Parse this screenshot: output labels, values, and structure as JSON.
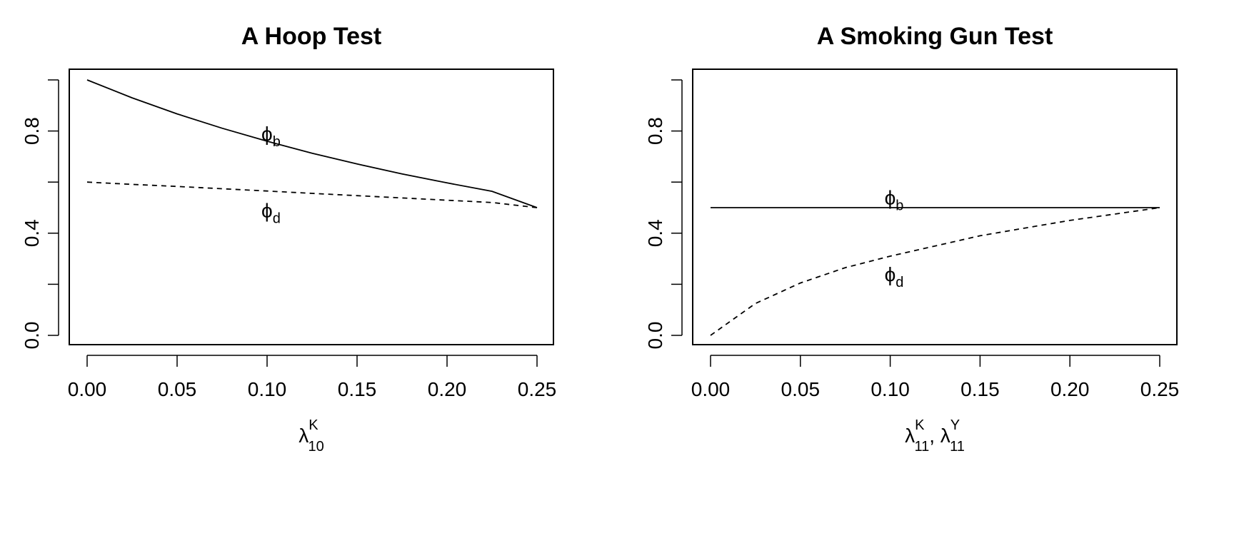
{
  "chart_data": [
    {
      "type": "line",
      "title": "A Hoop Test",
      "xlabel": {
        "symbol": "λ",
        "superscript": "K",
        "subscript": "10"
      },
      "ylabel": "",
      "xlim": [
        0,
        0.25
      ],
      "ylim": [
        0,
        1
      ],
      "xticks": [
        0,
        0.05,
        0.1,
        0.15,
        0.2,
        0.25
      ],
      "xtick_labels": [
        "0.00",
        "0.05",
        "0.10",
        "0.15",
        "0.20",
        "0.25"
      ],
      "yticks": [
        0,
        0.2,
        0.4,
        0.6,
        0.8,
        1.0
      ],
      "ytick_labels": [
        "0.0",
        "",
        "0.4",
        "",
        "0.8",
        ""
      ],
      "grid": false,
      "x": [
        0,
        0.025,
        0.05,
        0.075,
        0.1,
        0.125,
        0.15,
        0.175,
        0.2,
        0.225,
        0.25
      ],
      "series": [
        {
          "style": "solid",
          "values": [
            1.0,
            0.93,
            0.867,
            0.811,
            0.76,
            0.713,
            0.671,
            0.632,
            0.597,
            0.564,
            0.5
          ]
        },
        {
          "style": "dashed",
          "values": [
            0.6,
            0.591,
            0.583,
            0.574,
            0.565,
            0.556,
            0.547,
            0.538,
            0.529,
            0.52,
            0.5
          ]
        }
      ],
      "annotations": [
        {
          "symbol": "ϕ",
          "subscript": "b",
          "x": 0.1,
          "y": 0.79
        },
        {
          "symbol": "ϕ",
          "subscript": "d",
          "x": 0.1,
          "y": 0.49
        }
      ]
    },
    {
      "type": "line",
      "title": "A Smoking Gun Test",
      "xlabel": {
        "parts": [
          {
            "symbol": "λ",
            "superscript": "K",
            "subscript": "11"
          },
          {
            "symbol": "λ",
            "superscript": "Y",
            "subscript": "11"
          }
        ],
        "separator": ", "
      },
      "ylabel": "",
      "xlim": [
        0,
        0.25
      ],
      "ylim": [
        0,
        1
      ],
      "xticks": [
        0,
        0.05,
        0.1,
        0.15,
        0.2,
        0.25
      ],
      "xtick_labels": [
        "0.00",
        "0.05",
        "0.10",
        "0.15",
        "0.20",
        "0.25"
      ],
      "yticks": [
        0,
        0.2,
        0.4,
        0.6,
        0.8,
        1.0
      ],
      "ytick_labels": [
        "0.0",
        "",
        "0.4",
        "",
        "0.8",
        ""
      ],
      "grid": false,
      "x": [
        0,
        0.025,
        0.05,
        0.075,
        0.1,
        0.125,
        0.15,
        0.175,
        0.2,
        0.225,
        0.25
      ],
      "series": [
        {
          "style": "solid",
          "values": [
            0.5,
            0.5,
            0.5,
            0.5,
            0.5,
            0.5,
            0.5,
            0.5,
            0.5,
            0.5,
            0.5
          ]
        },
        {
          "style": "dashed",
          "values": [
            0.0,
            0.125,
            0.205,
            0.265,
            0.31,
            0.35,
            0.39,
            0.42,
            0.45,
            0.475,
            0.5
          ]
        }
      ],
      "annotations": [
        {
          "symbol": "ϕ",
          "subscript": "b",
          "x": 0.1,
          "y": 0.54
        },
        {
          "symbol": "ϕ",
          "subscript": "d",
          "x": 0.1,
          "y": 0.24
        }
      ]
    }
  ]
}
